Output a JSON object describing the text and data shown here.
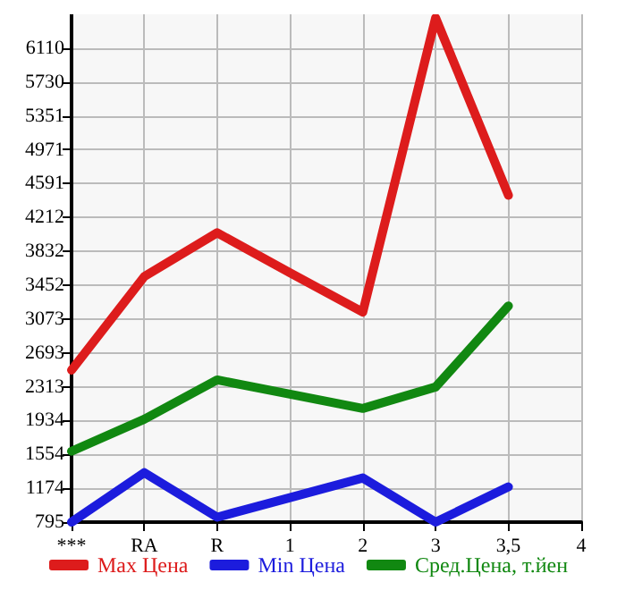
{
  "chart_data": {
    "type": "line",
    "categories": [
      "***",
      "RA",
      "R",
      "1",
      "2",
      "3",
      "3,5",
      "4"
    ],
    "series": [
      {
        "name": "Max Цена",
        "color": "#dd1c1c",
        "values": [
          2500,
          3550,
          4040,
          3590,
          3150,
          6450,
          4460,
          null
        ]
      },
      {
        "name": "Min Цена",
        "color": "#1c1cdd",
        "values": [
          795,
          1350,
          850,
          1070,
          1290,
          795,
          1190,
          null
        ]
      },
      {
        "name": "Сред.Цена, т.йен",
        "color": "#118811",
        "values": [
          1590,
          1950,
          2390,
          2230,
          2070,
          2310,
          3220,
          null
        ]
      }
    ],
    "ylim": [
      795,
      6490
    ],
    "yticks": [
      795,
      1174,
      1554,
      1934,
      2313,
      2693,
      3073,
      3452,
      3832,
      4212,
      4591,
      4971,
      5351,
      5730,
      6110
    ],
    "grid": true,
    "legend": "bottom",
    "marker": "none",
    "line_style": "solid"
  }
}
